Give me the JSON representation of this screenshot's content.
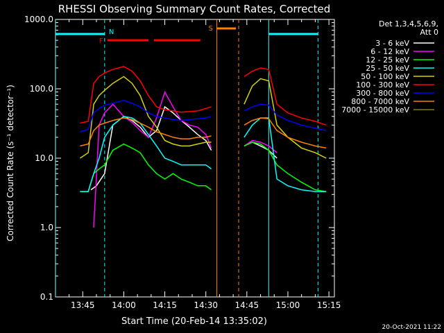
{
  "colors": {
    "bg": "#000000",
    "fg": "#ffffff",
    "3-6": "#ffffff",
    "6-12": "#ff00ff",
    "12-25": "#00ff00",
    "25-50": "#00ffff",
    "50-100": "#d4d400",
    "100-300": "#ff0000",
    "300-800": "#0000ff",
    "800-7000": "#ff8000",
    "7000-15000": "#808000",
    "flag_N": "#00ffff",
    "flag_F": "#ff0000",
    "flag_S": "#ff8000"
  },
  "chart_data": {
    "type": "line",
    "title": "RHESSI Observing Summary Count Rates, Corrected",
    "xlabel": "Start Time (20-Feb-14 13:35:02)",
    "ylabel": "Corrected Count Rate (s⁻¹ detector⁻¹)",
    "ylog": true,
    "ylim": [
      0.1,
      1000
    ],
    "xlim": [
      "13:35:02",
      "15:17:00"
    ],
    "yticks": [
      "0.1",
      "1.0",
      "10.0",
      "100.0",
      "1000.0"
    ],
    "xticks": [
      "13:45",
      "14:00",
      "14:15",
      "14:30",
      "14:45",
      "15:00",
      "15:15"
    ],
    "legend_header": [
      "Det 1,3,4,5,6,9,",
      "Att 0"
    ],
    "footer_date": "20-Oct-2021 11:22",
    "flags": [
      {
        "label": "N",
        "t_start": "13:35:02",
        "t_end": "13:53:00",
        "color": "#00ffff"
      },
      {
        "label": "N",
        "t_start": "14:53:00",
        "t_end": "15:11:00",
        "color": "#00ffff"
      },
      {
        "label": "F",
        "t_start": "13:54:00",
        "t_end": "14:09:00",
        "color": "#ff0000"
      },
      {
        "label": "F",
        "t_start": "14:11:00",
        "t_end": "14:28:00",
        "color": "#ff0000"
      },
      {
        "label": "S",
        "t_start": "14:34:00",
        "t_end": "14:41:00",
        "color": "#ff8000"
      }
    ],
    "markers": [
      {
        "t": "13:35:02",
        "color": "#00ffff",
        "style": "solid"
      },
      {
        "t": "13:53:00",
        "color": "#00ffff",
        "style": "dashed"
      },
      {
        "t": "14:34:00",
        "color": "#ff8000",
        "style": "solid"
      },
      {
        "t": "14:42:00",
        "color": "#ff8000",
        "style": "dashed"
      },
      {
        "t": "14:53:00",
        "color": "#00ffff",
        "style": "solid"
      },
      {
        "t": "15:11:00",
        "color": "#00ffff",
        "style": "dashed"
      }
    ],
    "segments": [
      {
        "t_start": "13:35:02",
        "t_end": "14:33:00"
      },
      {
        "t_start": "14:43:00",
        "t_end": "15:17:00"
      }
    ],
    "series": [
      {
        "name": "3 - 6 keV",
        "color": "#ffffff",
        "x": [
          "13:48",
          "13:50",
          "13:53",
          "13:56",
          "14:00",
          "14:03",
          "14:06",
          "14:09",
          "14:12",
          "14:15",
          "14:18",
          "14:21",
          "14:24",
          "14:27",
          "14:30",
          "14:32",
          "14:44",
          "14:47",
          "14:50",
          "14:53",
          "14:56"
        ],
        "y": [
          3.5,
          4,
          6,
          30,
          40,
          35,
          28,
          20,
          25,
          55,
          45,
          35,
          28,
          22,
          18,
          13,
          15,
          17,
          15,
          13,
          10
        ]
      },
      {
        "name": "6 - 12 keV",
        "color": "#ff00ff",
        "x": [
          "13:49",
          "13:51",
          "13:53",
          "13:56",
          "14:00",
          "14:03",
          "14:06",
          "14:09",
          "14:12",
          "14:15",
          "14:18",
          "14:21",
          "14:24",
          "14:27",
          "14:30",
          "14:32",
          "14:44",
          "14:47",
          "14:50",
          "14:53",
          "14:56"
        ],
        "y": [
          1,
          30,
          45,
          60,
          40,
          33,
          25,
          20,
          38,
          90,
          55,
          35,
          30,
          28,
          22,
          14,
          15,
          18,
          17,
          15,
          12
        ]
      },
      {
        "name": "12 - 25 keV",
        "color": "#00ff00",
        "x": [
          "13:35:02",
          "13:44",
          "13:47",
          "13:49",
          "13:51",
          "13:53",
          "13:56",
          "14:00",
          "14:03",
          "14:06",
          "14:09",
          "14:12",
          "14:15",
          "14:18",
          "14:21",
          "14:24",
          "14:27",
          "14:30",
          "14:32",
          "14:44",
          "14:47",
          "14:50",
          "14:53",
          "14:56",
          "15:00",
          "15:05",
          "15:10",
          "15:14"
        ],
        "y": [
          3.3,
          3.3,
          3.3,
          6,
          7,
          8,
          13,
          16,
          14,
          12,
          8,
          6,
          5,
          6,
          5,
          4.5,
          4,
          4,
          3.5,
          15,
          17,
          16,
          13,
          8,
          6,
          4.5,
          3.5,
          3.3
        ]
      },
      {
        "name": "25 - 50 keV",
        "color": "#00ffff",
        "x": [
          "13:35:02",
          "13:44",
          "13:47",
          "13:49",
          "13:51",
          "13:53",
          "13:56",
          "14:00",
          "14:03",
          "14:06",
          "14:09",
          "14:12",
          "14:15",
          "14:18",
          "14:21",
          "14:24",
          "14:27",
          "14:30",
          "14:32",
          "14:44",
          "14:47",
          "14:50",
          "14:53",
          "14:56",
          "15:00",
          "15:05",
          "15:10",
          "15:14"
        ],
        "y": [
          3.3,
          3.3,
          3.3,
          6,
          10,
          20,
          30,
          40,
          38,
          32,
          22,
          15,
          10,
          9,
          8,
          8,
          8,
          8,
          7,
          20,
          30,
          38,
          38,
          5,
          4,
          3.5,
          3.3,
          3.3
        ]
      },
      {
        "name": "50 - 100 keV",
        "color": "#d4d400",
        "x": [
          "13:35:02",
          "13:44",
          "13:47",
          "13:49",
          "13:51",
          "13:53",
          "13:56",
          "14:00",
          "14:03",
          "14:06",
          "14:09",
          "14:12",
          "14:15",
          "14:18",
          "14:21",
          "14:24",
          "14:27",
          "14:30",
          "14:32",
          "14:44",
          "14:47",
          "14:50",
          "14:53",
          "14:56",
          "15:00",
          "15:05",
          "15:10",
          "15:14"
        ],
        "y": [
          10,
          10,
          12,
          60,
          80,
          95,
          120,
          150,
          120,
          80,
          40,
          28,
          18,
          16,
          15,
          15,
          16,
          17,
          17,
          60,
          110,
          140,
          130,
          30,
          20,
          14,
          12,
          10
        ]
      },
      {
        "name": "100 - 300 keV",
        "color": "#ff0000",
        "x": [
          "13:35:02",
          "13:44",
          "13:47",
          "13:49",
          "13:51",
          "13:53",
          "13:56",
          "14:00",
          "14:03",
          "14:06",
          "14:09",
          "14:12",
          "14:15",
          "14:18",
          "14:21",
          "14:24",
          "14:27",
          "14:30",
          "14:32",
          "14:44",
          "14:47",
          "14:50",
          "14:53",
          "14:56",
          "15:00",
          "15:05",
          "15:10",
          "15:14"
        ],
        "y": [
          30,
          32,
          34,
          120,
          150,
          170,
          190,
          210,
          180,
          130,
          80,
          55,
          50,
          48,
          46,
          47,
          48,
          52,
          55,
          150,
          180,
          200,
          190,
          60,
          45,
          38,
          34,
          30
        ]
      },
      {
        "name": "300 - 800 keV",
        "color": "#0000ff",
        "x": [
          "13:35:02",
          "13:44",
          "13:47",
          "13:49",
          "13:51",
          "13:53",
          "13:56",
          "14:00",
          "14:03",
          "14:06",
          "14:09",
          "14:12",
          "14:15",
          "14:18",
          "14:21",
          "14:24",
          "14:27",
          "14:30",
          "14:32",
          "14:44",
          "14:47",
          "14:50",
          "14:53",
          "14:56",
          "15:00",
          "15:05",
          "15:10",
          "15:14"
        ],
        "y": [
          22,
          24,
          26,
          45,
          52,
          58,
          62,
          68,
          62,
          55,
          45,
          40,
          38,
          36,
          35,
          36,
          37,
          38,
          40,
          48,
          55,
          60,
          58,
          42,
          35,
          30,
          27,
          25
        ]
      },
      {
        "name": "800 - 7000 keV",
        "color": "#ff8000",
        "x": [
          "13:35:02",
          "13:44",
          "13:47",
          "13:49",
          "13:51",
          "13:53",
          "13:56",
          "14:00",
          "14:03",
          "14:06",
          "14:09",
          "14:12",
          "14:15",
          "14:18",
          "14:21",
          "14:24",
          "14:27",
          "14:30",
          "14:32",
          "14:44",
          "14:47",
          "14:50",
          "14:53",
          "14:56",
          "15:00",
          "15:05",
          "15:10",
          "15:14"
        ],
        "y": [
          14,
          15,
          16,
          25,
          30,
          32,
          35,
          38,
          36,
          32,
          28,
          24,
          22,
          20,
          19,
          19,
          20,
          20,
          21,
          30,
          35,
          38,
          37,
          25,
          20,
          17,
          15,
          14
        ]
      },
      {
        "name": "7000 - 15000 keV",
        "color": "#808000",
        "x": [
          "13:53",
          "14:09",
          "14:43",
          "15:00"
        ],
        "y": [
          1.0,
          1.0,
          1.0,
          1.0
        ]
      }
    ]
  }
}
